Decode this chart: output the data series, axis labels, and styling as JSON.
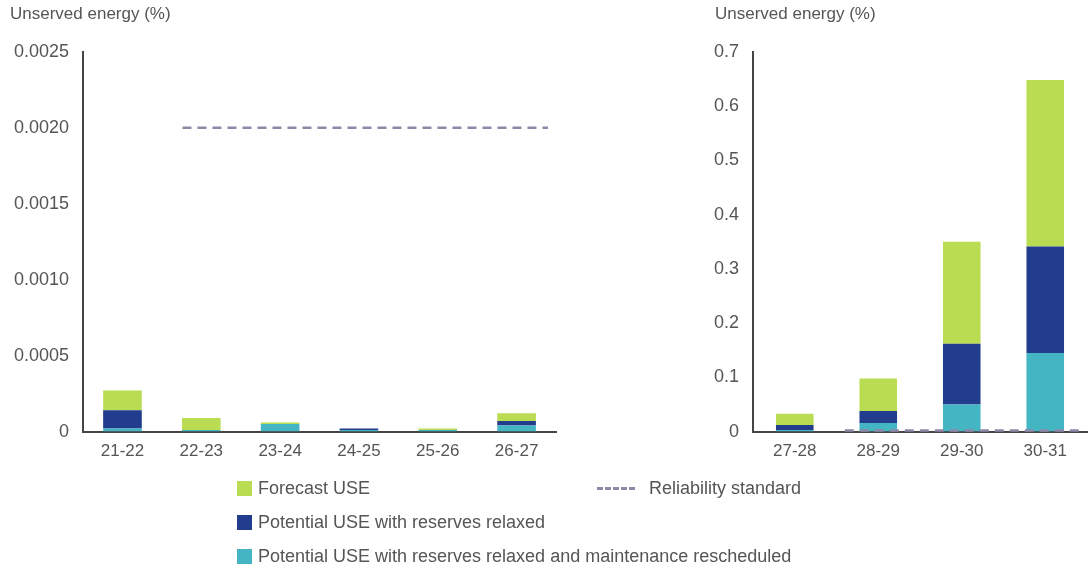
{
  "chart_data": [
    {
      "type": "bar",
      "ylabel": "Unserved energy (%)",
      "categories": [
        "21-22",
        "22-23",
        "23-24",
        "24-25",
        "25-26",
        "26-27"
      ],
      "stacked": true,
      "series": [
        {
          "name": "Potential USE with reserves relaxed and maintenance rescheduled",
          "color": "#43b5c3",
          "values": [
            2e-05,
            1e-05,
            5e-05,
            1e-05,
            1e-05,
            4e-05
          ]
        },
        {
          "name": "Potential USE with reserves relaxed",
          "color": "#233d8e",
          "values": [
            0.00012,
            0,
            0,
            1e-05,
            0,
            3e-05
          ]
        },
        {
          "name": "Forecast USE",
          "color": "#b9dc52",
          "values": [
            0.00013,
            8e-05,
            1e-05,
            0,
            1e-05,
            5e-05
          ]
        }
      ],
      "ylim": [
        0,
        0.0025
      ],
      "yticks": [
        0,
        0.0005,
        {
          "value": 0.001,
          "label": "0.0010"
        },
        0.0015,
        {
          "value": 0.002,
          "label": "0.0020"
        },
        0.0025
      ],
      "ref_lines": [
        {
          "axis": "y",
          "value": 0.002,
          "label": "Reliability standard",
          "color": "#8e88a8",
          "line_style": "dashed"
        }
      ],
      "grid": false,
      "legend": "bottom"
    },
    {
      "type": "bar",
      "ylabel": "Unserved energy (%)",
      "categories": [
        "27-28",
        "28-29",
        "29-30",
        "30-31"
      ],
      "stacked": true,
      "series": [
        {
          "color": "#43b5c3",
          "values": [
            0.003,
            0.016,
            0.05,
            0.145
          ]
        },
        {
          "color": "#233d8e",
          "values": [
            0.009,
            0.022,
            0.112,
            0.196
          ]
        },
        {
          "color": "#b9dc52",
          "values": [
            0.021,
            0.06,
            0.188,
            0.307
          ]
        }
      ],
      "ylim": [
        0,
        0.7
      ],
      "yticks": [
        0,
        0.1,
        0.2,
        0.3,
        0.4,
        0.5,
        0.6,
        0.7
      ],
      "ref_lines": [
        {
          "axis": "y",
          "value": 0.002,
          "color": "#8e88a8",
          "line_style": "dashed"
        }
      ],
      "grid": false
    }
  ]
}
